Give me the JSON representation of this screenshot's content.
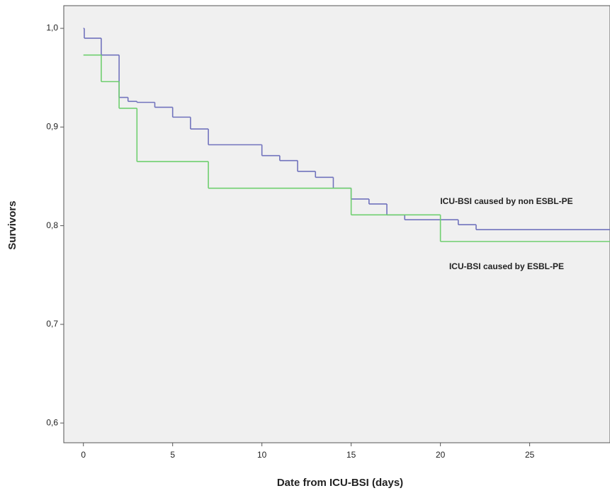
{
  "chart_data": {
    "type": "step",
    "x_label": "Date from ICU-BSI (days)",
    "y_label": "Survivors",
    "xlim": [
      -1.1,
      29.5
    ],
    "ylim": [
      0.58,
      1.023
    ],
    "xticks": [
      0,
      5,
      10,
      15,
      20,
      25
    ],
    "yticks": [
      {
        "value": 0.6,
        "label": "0,6"
      },
      {
        "value": 0.7,
        "label": "0,7"
      },
      {
        "value": 0.8,
        "label": "0,8"
      },
      {
        "value": 0.9,
        "label": "0,9"
      },
      {
        "value": 1.0,
        "label": "1,0"
      }
    ],
    "series": [
      {
        "name": "ICU-BSI caused by non ESBL-PE",
        "color": "#7173bd",
        "x": [
          0,
          0.05,
          1,
          2,
          2.5,
          3,
          4,
          5,
          6,
          7,
          10,
          11,
          12,
          13,
          14,
          15,
          16,
          17,
          18,
          21,
          22
        ],
        "values": [
          1.0,
          0.99,
          0.973,
          0.93,
          0.926,
          0.925,
          0.92,
          0.91,
          0.898,
          0.882,
          0.871,
          0.866,
          0.855,
          0.849,
          0.838,
          0.827,
          0.822,
          0.811,
          0.806,
          0.801,
          0.796
        ]
      },
      {
        "name": "ICU-BSI caused by ESBL-PE",
        "color": "#6fcf6f",
        "x": [
          0,
          1,
          2,
          3,
          7,
          15,
          20
        ],
        "values": [
          0.973,
          0.946,
          0.919,
          0.865,
          0.838,
          0.811,
          0.784
        ]
      }
    ]
  }
}
